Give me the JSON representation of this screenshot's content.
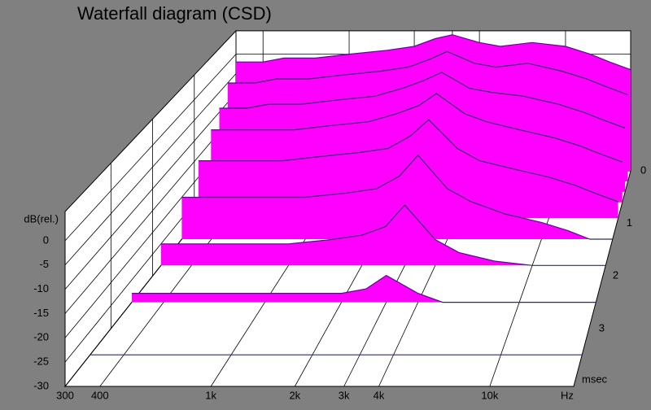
{
  "chart_data": {
    "type": "waterfall",
    "title": "Waterfall diagram (CSD)",
    "y_label": "dB(rel.)",
    "x_label": "Hz",
    "z_label": "msec",
    "x_scale": "log",
    "xlim": [
      300,
      20000
    ],
    "xticks": [
      300,
      400,
      {
        "value": 1000,
        "label": "1k"
      },
      {
        "value": 2000,
        "label": "2k"
      },
      {
        "value": 3000,
        "label": "3k"
      },
      {
        "value": 4000,
        "label": "4k"
      },
      {
        "value": 10000,
        "label": "10k"
      }
    ],
    "ylim": [
      -30,
      6
    ],
    "yticks": [
      0,
      -5,
      -10,
      -15,
      -20,
      -25,
      -30
    ],
    "zlim": [
      0,
      4.1
    ],
    "zticks": [
      0,
      1,
      2,
      3
    ],
    "color": "#ff00ff",
    "line_color": "#2b2b6b",
    "grid": true,
    "frequencies": [
      300,
      400,
      500,
      700,
      1000,
      1500,
      2000,
      2500,
      3000,
      4000,
      5000,
      7000,
      10000,
      13000,
      16000,
      20000
    ],
    "slices": [
      {
        "time": 0,
        "values": [
          -2,
          -2,
          -1,
          -1,
          0,
          1,
          2,
          4,
          5,
          3,
          2,
          3,
          2,
          0,
          -2,
          -4
        ]
      },
      {
        "time": 0.2,
        "values": [
          -5,
          -5,
          -4,
          -4,
          -3,
          -2,
          -1,
          1,
          3,
          0,
          -1,
          0,
          -2,
          -4,
          -6,
          -8
        ]
      },
      {
        "time": 0.4,
        "values": [
          -9,
          -9,
          -8,
          -8,
          -7,
          -6,
          -4,
          -2,
          0,
          -4,
          -5,
          -6,
          -8,
          -10,
          -12,
          -14
        ]
      },
      {
        "time": 0.6,
        "values": [
          -12,
          -12,
          -12,
          -12,
          -11,
          -10,
          -8,
          -6,
          -3,
          -8,
          -10,
          -12,
          -14,
          -16,
          -18,
          -20
        ]
      },
      {
        "time": 0.9,
        "values": [
          -16,
          -16,
          -16,
          -16,
          -15,
          -14,
          -13,
          -10,
          -6,
          -13,
          -16,
          -18,
          -20,
          -22,
          -24,
          -26
        ]
      },
      {
        "time": 1.3,
        "values": [
          -20,
          -20,
          -20,
          -20,
          -20,
          -19,
          -18,
          -15,
          -10,
          -18,
          -21,
          -24,
          -26,
          -28,
          -30,
          -30
        ]
      },
      {
        "time": 1.8,
        "values": [
          -25,
          -25,
          -25,
          -25,
          -25,
          -24,
          -23,
          -21,
          -16,
          -24,
          -27,
          -29,
          -30,
          -30,
          -30,
          -30
        ]
      },
      {
        "time": 2.5,
        "values": [
          -28,
          -28,
          -28,
          -28,
          -28,
          -28,
          -28,
          -27,
          -24,
          -28,
          -30,
          -30,
          -30,
          -30,
          -30,
          -30
        ]
      },
      {
        "time": 3.5,
        "values": [
          -30,
          -30,
          -30,
          -30,
          -30,
          -30,
          -30,
          -30,
          -30,
          -30,
          -30,
          -30,
          -30,
          -30,
          -30,
          -30
        ]
      }
    ]
  }
}
